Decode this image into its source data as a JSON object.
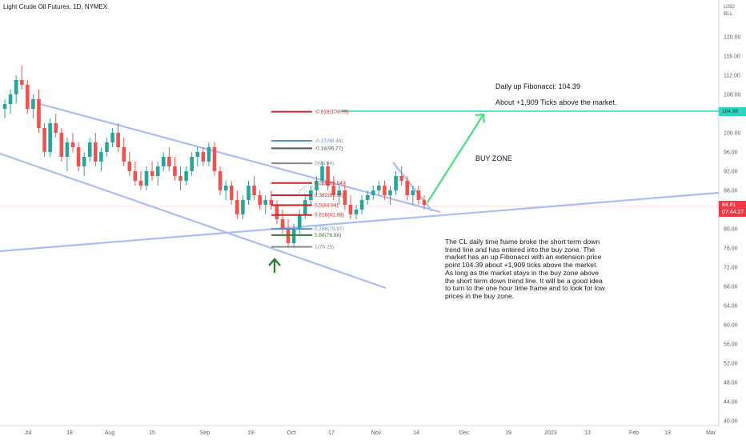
{
  "header": {
    "symbol_title": "Light Crude Oil Futures, 1D, NYMEX"
  },
  "price_axis": {
    "currency": "USD",
    "unit": "BLL",
    "ticks": [
      "120.00",
      "116.00",
      "112.00",
      "108.00",
      "104.00",
      "100.00",
      "96.00",
      "92.00",
      "88.00",
      "84.00",
      "80.00",
      "76.00",
      "72.00",
      "68.00",
      "64.00",
      "60.00",
      "56.00",
      "52.00",
      "48.00",
      "44.00",
      "40.00"
    ],
    "last_price": "84.81",
    "countdown": "07:44:27",
    "target_label": "104.39"
  },
  "time_axis": {
    "ticks": [
      "Jul",
      "18",
      "Aug",
      "15",
      "Sep",
      "19",
      "Oct",
      "17",
      "Nov",
      "14",
      "Dec",
      "19",
      "2023",
      "13",
      "Feb",
      "13",
      "Mar"
    ]
  },
  "chart_data": {
    "type": "candlestick",
    "x_range": [
      "Jul",
      "Mar"
    ],
    "ylim": [
      40,
      124
    ],
    "last_price": 84.81,
    "candles_ohlc": [
      [
        105,
        107,
        103,
        106
      ],
      [
        106,
        109,
        104,
        108
      ],
      [
        108,
        112,
        106,
        111
      ],
      [
        111,
        114,
        109,
        110
      ],
      [
        110,
        111,
        104,
        105
      ],
      [
        105,
        108,
        103,
        107
      ],
      [
        107,
        109,
        100,
        101
      ],
      [
        101,
        102,
        95,
        96
      ],
      [
        96,
        103,
        95,
        102
      ],
      [
        102,
        104,
        99,
        100
      ],
      [
        100,
        101,
        94,
        95
      ],
      [
        95,
        99,
        92,
        98
      ],
      [
        98,
        100,
        96,
        97
      ],
      [
        97,
        98,
        92,
        93
      ],
      [
        93,
        96,
        91,
        95
      ],
      [
        95,
        99,
        94,
        98
      ],
      [
        98,
        100,
        93,
        94
      ],
      [
        94,
        97,
        92,
        96
      ],
      [
        96,
        99,
        95,
        98
      ],
      [
        98,
        101,
        97,
        100
      ],
      [
        100,
        102,
        96,
        97
      ],
      [
        97,
        99,
        93,
        94
      ],
      [
        94,
        96,
        91,
        92
      ],
      [
        92,
        94,
        89,
        90
      ],
      [
        90,
        92,
        88,
        89
      ],
      [
        89,
        93,
        88,
        92
      ],
      [
        92,
        94,
        90,
        91
      ],
      [
        91,
        94,
        89,
        93
      ],
      [
        93,
        96,
        92,
        95
      ],
      [
        95,
        97,
        92,
        93
      ],
      [
        93,
        95,
        90,
        91
      ],
      [
        91,
        93,
        88,
        90
      ],
      [
        90,
        93,
        89,
        92
      ],
      [
        92,
        96,
        91,
        95
      ],
      [
        95,
        97,
        93,
        96
      ],
      [
        96,
        97,
        93,
        94
      ],
      [
        94,
        98,
        93,
        97
      ],
      [
        97,
        98,
        91,
        92
      ],
      [
        92,
        93,
        87,
        88
      ],
      [
        88,
        90,
        86,
        89
      ],
      [
        89,
        90,
        85,
        86
      ],
      [
        86,
        88,
        82,
        83
      ],
      [
        83,
        87,
        82,
        86
      ],
      [
        86,
        90,
        85,
        89
      ],
      [
        89,
        91,
        86,
        87
      ],
      [
        87,
        88,
        84,
        85
      ],
      [
        85,
        87,
        83,
        86
      ],
      [
        86,
        88,
        84,
        85
      ],
      [
        85,
        86,
        81,
        82
      ],
      [
        82,
        84,
        79,
        80
      ],
      [
        80,
        82,
        76,
        77
      ],
      [
        77,
        81,
        76,
        80
      ],
      [
        80,
        84,
        79,
        83
      ],
      [
        83,
        87,
        82,
        86
      ],
      [
        86,
        89,
        85,
        88
      ],
      [
        88,
        91,
        87,
        90
      ],
      [
        90,
        94,
        89,
        93
      ],
      [
        93,
        94,
        88,
        89
      ],
      [
        89,
        91,
        86,
        87
      ],
      [
        87,
        89,
        85,
        88
      ],
      [
        88,
        90,
        84,
        85
      ],
      [
        85,
        87,
        82,
        83
      ],
      [
        83,
        85,
        82,
        84
      ],
      [
        84,
        87,
        83,
        86
      ],
      [
        86,
        88,
        85,
        87
      ],
      [
        87,
        89,
        86,
        88
      ],
      [
        88,
        90,
        87,
        89
      ],
      [
        89,
        90,
        86,
        87
      ],
      [
        87,
        89,
        85,
        88
      ],
      [
        88,
        92,
        87,
        91
      ],
      [
        91,
        93,
        89,
        90
      ],
      [
        90,
        91,
        86,
        87
      ],
      [
        87,
        89,
        85,
        88
      ],
      [
        88,
        89,
        85,
        86
      ],
      [
        86,
        87,
        84,
        85
      ]
    ],
    "fibonacci": {
      "title": "Daily up Fibonacci: 104.39",
      "levels": [
        {
          "ratio": "-0.618",
          "price": "104.39",
          "color": "#c62828"
        },
        {
          "ratio": "-0.27",
          "price": "98.34",
          "color": "#5b8fc7"
        },
        {
          "ratio": "-0.18",
          "price": "96.77",
          "color": "#555555"
        },
        {
          "ratio": "0",
          "price": "93.64",
          "color": "#888888"
        },
        {
          "ratio": "0.236",
          "price": "89.54",
          "color": "#c62828"
        },
        {
          "ratio": "0.382",
          "price": "87.00",
          "color": "#c62828"
        },
        {
          "ratio": "0.5",
          "price": "84.94",
          "color": "#c62828"
        },
        {
          "ratio": "0.618",
          "price": "82.88",
          "color": "#c62828"
        },
        {
          "ratio": "0.786",
          "price": "79.97",
          "color": "#5b8fc7"
        },
        {
          "ratio": "0.86",
          "price": "78.68",
          "color": "#2e7d32"
        },
        {
          "ratio": "1",
          "price": "76.25",
          "color": "#888888"
        }
      ]
    }
  },
  "annotations": {
    "fib_title": "Daily up Fibonacci: 104.39",
    "ticks_above": "About +1,909 Ticks above the market.",
    "buy_zone": "BUY ZONE",
    "description": "The CL daily time frame broke the short term down trend line and has entered into the buy zone. The market has an up Fibonacci with an extension price point 104.39 about +1,909 ticks above the market. As long as the market stays in the buy zone above the short term down trend line. It will be a good idea to turn to the one hour time frame and to look for low prices in the buy zone."
  },
  "colors": {
    "up": "#26a69a",
    "down": "#ef5350",
    "trendline": "#a9bdf5",
    "target_line": "#2dd4bf",
    "arrow": "#2e7d32",
    "projection_arrow": "#4ade80"
  }
}
